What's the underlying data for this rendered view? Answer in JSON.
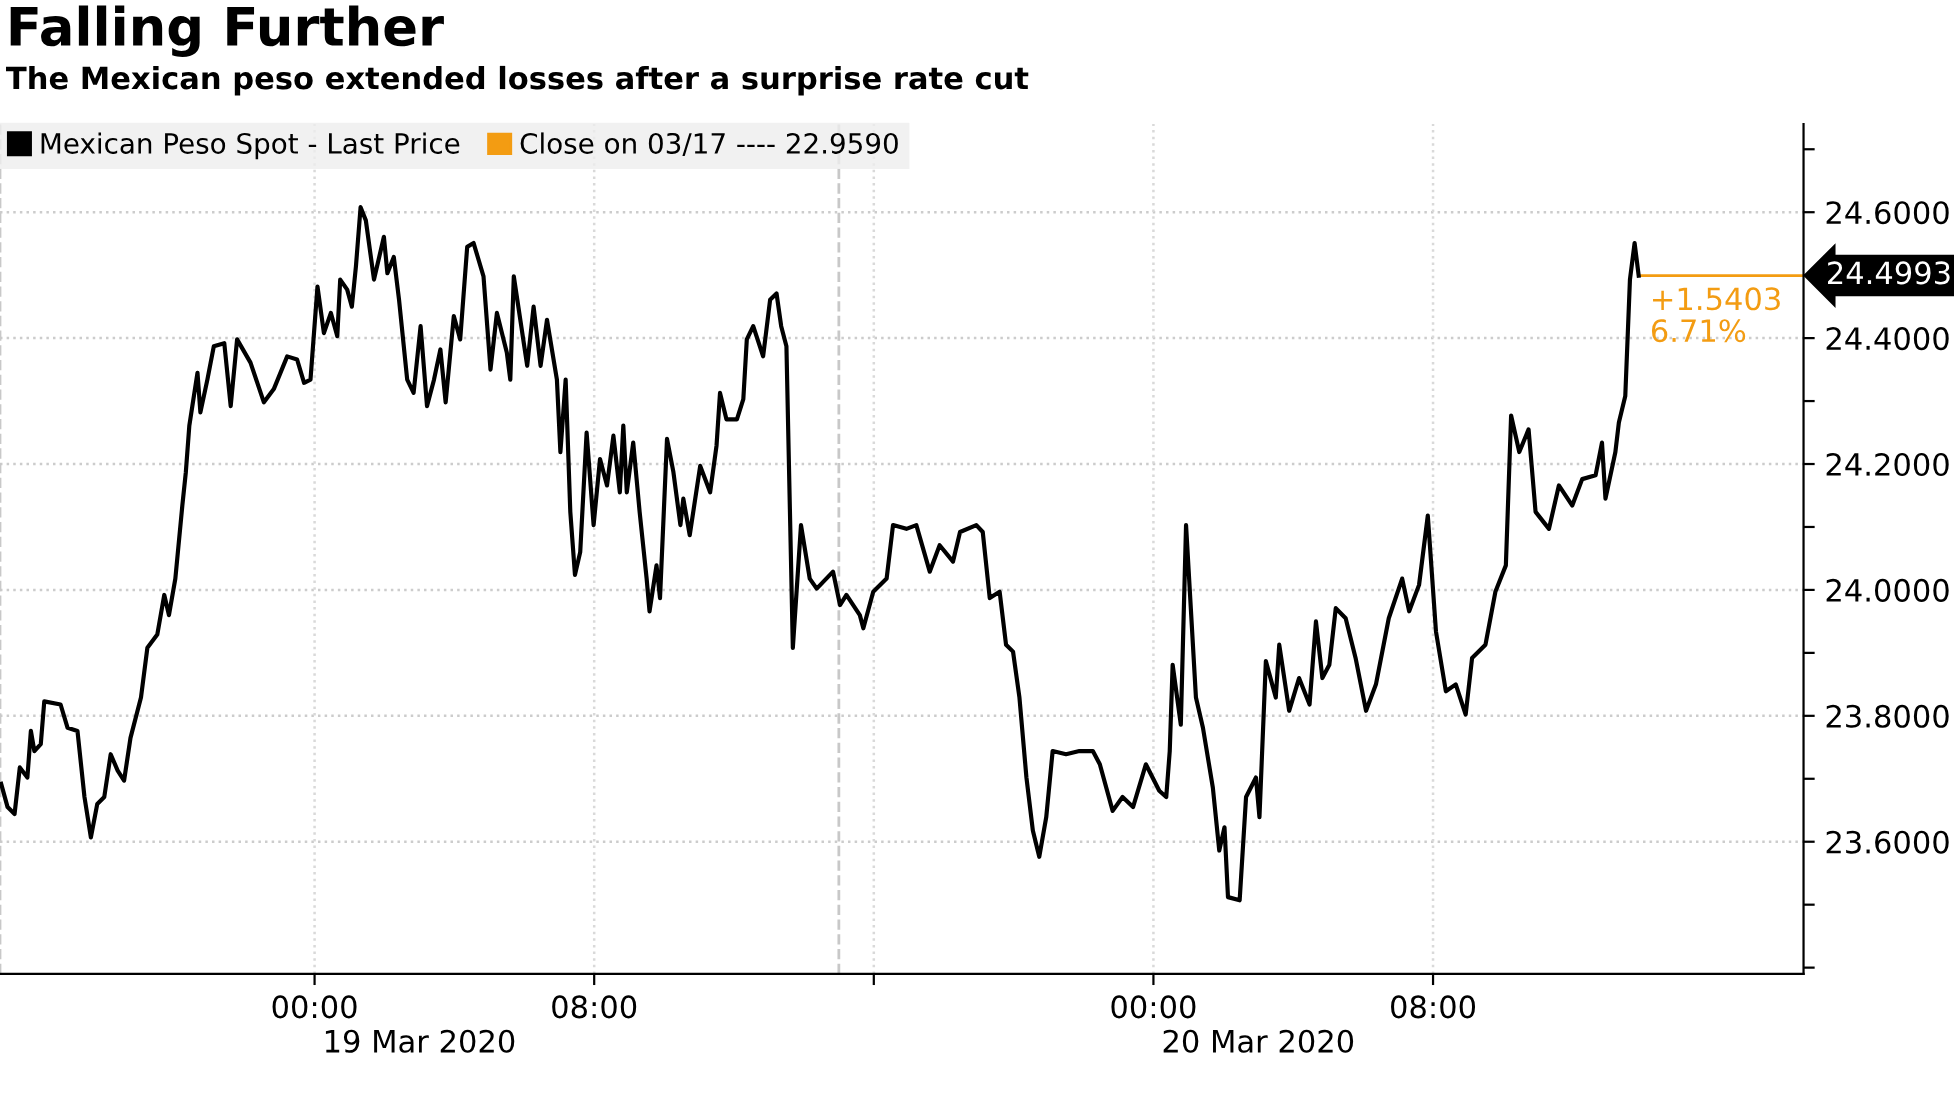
{
  "chart_data": {
    "type": "line",
    "title": "Falling Further",
    "subtitle": "The Mexican peso extended losses after a surprise rate cut",
    "series": [
      {
        "name": "Mexican Peso Spot - Last Price",
        "color": "#000000",
        "x": [
          "2020-03-18T15:02",
          "2020-03-18T15:13",
          "2020-03-18T15:25",
          "2020-03-18T15:34",
          "2020-03-18T15:47",
          "2020-03-18T15:53",
          "2020-03-18T15:59",
          "2020-03-18T16:10",
          "2020-03-18T16:16",
          "2020-03-18T16:44",
          "2020-03-18T16:56",
          "2020-03-18T17:13",
          "2020-03-18T17:25",
          "2020-03-18T17:36",
          "2020-03-18T17:47",
          "2020-03-18T17:59",
          "2020-03-18T18:10",
          "2020-03-18T18:22",
          "2020-03-18T18:33",
          "2020-03-18T18:44",
          "2020-03-18T19:02",
          "2020-03-18T19:13",
          "2020-03-18T19:30",
          "2020-03-18T19:42",
          "2020-03-18T19:50",
          "2020-03-18T20:01",
          "2020-03-18T20:13",
          "2020-03-18T20:19",
          "2020-03-18T20:25",
          "2020-03-18T20:39",
          "2020-03-18T20:44",
          "2020-03-18T20:56",
          "2020-03-18T21:07",
          "2020-03-18T21:25",
          "2020-03-18T21:36",
          "2020-03-18T21:47",
          "2020-03-18T22:10",
          "2020-03-18T22:33",
          "2020-03-18T22:50",
          "2020-03-18T23:13",
          "2020-03-18T23:30",
          "2020-03-18T23:42",
          "2020-03-18T23:53",
          "2020-03-19T00:05",
          "2020-03-19T00:16",
          "2020-03-19T00:28",
          "2020-03-19T00:39",
          "2020-03-19T00:44",
          "2020-03-19T00:56",
          "2020-03-19T01:04",
          "2020-03-19T01:11",
          "2020-03-19T01:19",
          "2020-03-19T01:28",
          "2020-03-19T01:42",
          "2020-03-19T01:59",
          "2020-03-19T02:05",
          "2020-03-19T02:16",
          "2020-03-19T02:25",
          "2020-03-19T02:39",
          "2020-03-19T02:50",
          "2020-03-19T03:02",
          "2020-03-19T03:13",
          "2020-03-19T03:25",
          "2020-03-19T03:36",
          "2020-03-19T03:45",
          "2020-03-19T03:59",
          "2020-03-19T04:10",
          "2020-03-19T04:22",
          "2020-03-19T04:33",
          "2020-03-19T04:50",
          "2020-03-19T05:02",
          "2020-03-19T05:13",
          "2020-03-19T05:30",
          "2020-03-19T05:36",
          "2020-03-19T05:42",
          "2020-03-19T06:05",
          "2020-03-19T06:16",
          "2020-03-19T06:28",
          "2020-03-19T06:39",
          "2020-03-19T06:56",
          "2020-03-19T07:02",
          "2020-03-19T07:11",
          "2020-03-19T07:19",
          "2020-03-19T07:27",
          "2020-03-19T07:36",
          "2020-03-19T07:47",
          "2020-03-19T07:59",
          "2020-03-19T08:10",
          "2020-03-19T08:22",
          "2020-03-19T08:33",
          "2020-03-19T08:44",
          "2020-03-19T08:50",
          "2020-03-19T08:56",
          "2020-03-19T09:07",
          "2020-03-19T09:18",
          "2020-03-19T09:30",
          "2020-03-19T09:35",
          "2020-03-19T09:47",
          "2020-03-19T09:53",
          "2020-03-19T10:05",
          "2020-03-19T10:16",
          "2020-03-19T10:28",
          "2020-03-19T10:33",
          "2020-03-19T10:44",
          "2020-03-19T11:02",
          "2020-03-19T11:19",
          "2020-03-19T11:30",
          "2020-03-19T11:36",
          "2020-03-19T11:47",
          "2020-03-19T12:05",
          "2020-03-19T12:16",
          "2020-03-19T12:22",
          "2020-03-19T12:33",
          "2020-03-19T12:50",
          "2020-03-19T13:02",
          "2020-03-19T13:13",
          "2020-03-19T13:21",
          "2020-03-19T13:30",
          "2020-03-19T13:41",
          "2020-03-19T13:55",
          "2020-03-19T14:10",
          "2020-03-19T14:22",
          "2020-03-19T14:50",
          "2020-03-19T15:02",
          "2020-03-19T15:13",
          "2020-03-19T15:36",
          "2020-03-19T15:42",
          "2020-03-19T15:59",
          "2020-03-19T16:22",
          "2020-03-19T16:33",
          "2020-03-19T16:56",
          "2020-03-19T17:13",
          "2020-03-19T17:36",
          "2020-03-19T17:53",
          "2020-03-19T18:16",
          "2020-03-19T18:28",
          "2020-03-19T18:56",
          "2020-03-19T19:07",
          "2020-03-19T19:19",
          "2020-03-19T19:36",
          "2020-03-19T19:47",
          "2020-03-19T19:59",
          "2020-03-19T20:10",
          "2020-03-19T20:22",
          "2020-03-19T20:33",
          "2020-03-19T20:44",
          "2020-03-19T20:56",
          "2020-03-19T21:07",
          "2020-03-19T21:30",
          "2020-03-19T21:53",
          "2020-03-19T22:16",
          "2020-03-19T22:28",
          "2020-03-19T22:50",
          "2020-03-19T23:07",
          "2020-03-19T23:25",
          "2020-03-19T23:47",
          "2020-03-20T00:10",
          "2020-03-20T00:22",
          "2020-03-20T00:28",
          "2020-03-20T00:33",
          "2020-03-20T00:47",
          "2020-03-20T00:56",
          "2020-03-20T01:13",
          "2020-03-20T01:25",
          "2020-03-20T01:42",
          "2020-03-20T01:53",
          "2020-03-20T02:02",
          "2020-03-20T02:08",
          "2020-03-20T02:28",
          "2020-03-20T02:39",
          "2020-03-20T02:56",
          "2020-03-20T03:02",
          "2020-03-20T03:13",
          "2020-03-20T03:30",
          "2020-03-20T03:36",
          "2020-03-20T03:53",
          "2020-03-20T04:10",
          "2020-03-20T04:28",
          "2020-03-20T04:39",
          "2020-03-20T04:50",
          "2020-03-20T05:02",
          "2020-03-20T05:13",
          "2020-03-20T05:30",
          "2020-03-20T05:47",
          "2020-03-20T06:05",
          "2020-03-20T06:22",
          "2020-03-20T06:44",
          "2020-03-20T07:07",
          "2020-03-20T07:19",
          "2020-03-20T07:36",
          "2020-03-20T07:51",
          "2020-03-20T08:05",
          "2020-03-20T08:22",
          "2020-03-20T08:39",
          "2020-03-20T08:56",
          "2020-03-20T09:07",
          "2020-03-20T09:30",
          "2020-03-20T09:47",
          "2020-03-20T10:05",
          "2020-03-20T10:14",
          "2020-03-20T10:28",
          "2020-03-20T10:44",
          "2020-03-20T10:56",
          "2020-03-20T11:19",
          "2020-03-20T11:36",
          "2020-03-20T11:59",
          "2020-03-20T12:16",
          "2020-03-20T12:39",
          "2020-03-20T12:50",
          "2020-03-20T12:56",
          "2020-03-20T13:13",
          "2020-03-20T13:19",
          "2020-03-20T13:30",
          "2020-03-20T13:38",
          "2020-03-20T13:46",
          "2020-03-20T13:53"
        ],
        "values": [
          23.692,
          23.655,
          23.644,
          23.718,
          23.702,
          23.776,
          23.744,
          23.755,
          23.823,
          23.818,
          23.781,
          23.776,
          23.671,
          23.607,
          23.66,
          23.671,
          23.739,
          23.713,
          23.697,
          23.765,
          23.829,
          23.908,
          23.929,
          23.992,
          23.96,
          24.018,
          24.134,
          24.187,
          24.261,
          24.345,
          24.282,
          24.334,
          24.387,
          24.392,
          24.292,
          24.398,
          24.361,
          24.298,
          24.319,
          24.371,
          24.366,
          24.329,
          24.334,
          24.482,
          24.408,
          24.44,
          24.403,
          24.493,
          24.477,
          24.45,
          24.514,
          24.608,
          24.587,
          24.493,
          24.561,
          24.503,
          24.529,
          24.461,
          24.334,
          24.313,
          24.419,
          24.292,
          24.334,
          24.382,
          24.298,
          24.435,
          24.398,
          24.545,
          24.551,
          24.498,
          24.35,
          24.44,
          24.377,
          24.334,
          24.498,
          24.356,
          24.45,
          24.356,
          24.429,
          24.334,
          24.219,
          24.334,
          24.124,
          24.024,
          24.06,
          24.25,
          24.103,
          24.208,
          24.166,
          24.245,
          24.155,
          24.261,
          24.155,
          24.234,
          24.124,
          24.018,
          23.966,
          24.039,
          23.987,
          24.24,
          24.187,
          24.103,
          24.145,
          24.087,
          24.197,
          24.155,
          24.229,
          24.313,
          24.271,
          24.271,
          24.303,
          24.398,
          24.419,
          24.371,
          24.461,
          24.471,
          24.419,
          24.387,
          23.908,
          24.103,
          24.018,
          24.002,
          24.029,
          23.976,
          23.992,
          23.96,
          23.939,
          23.997,
          24.018,
          24.103,
          24.097,
          24.103,
          24.029,
          24.071,
          24.045,
          24.092,
          24.103,
          24.092,
          23.987,
          23.997,
          23.913,
          23.902,
          23.829,
          23.702,
          23.618,
          23.576,
          23.639,
          23.744,
          23.739,
          23.744,
          23.744,
          23.723,
          23.649,
          23.671,
          23.655,
          23.723,
          23.681,
          23.671,
          23.744,
          23.881,
          23.786,
          24.103,
          23.829,
          23.781,
          23.686,
          23.586,
          23.623,
          23.512,
          23.507,
          23.671,
          23.702,
          23.639,
          23.887,
          23.829,
          23.913,
          23.808,
          23.86,
          23.818,
          23.95,
          23.86,
          23.881,
          23.971,
          23.955,
          23.892,
          23.808,
          23.85,
          23.955,
          24.018,
          23.966,
          24.008,
          24.118,
          23.934,
          23.839,
          23.85,
          23.802,
          23.892,
          23.913,
          23.997,
          24.039,
          24.277,
          24.219,
          24.255,
          24.124,
          24.097,
          24.166,
          24.134,
          24.176,
          24.182,
          24.234,
          24.145,
          24.219,
          24.266,
          24.308,
          24.493,
          24.551,
          24.4993
        ]
      }
    ],
    "xlim": [
      "2020-03-18T15:00",
      "2020-03-20T18:36"
    ],
    "xticks": [
      {
        "value": "2020-03-19T00:00",
        "label": "00:00"
      },
      {
        "value": "2020-03-19T08:00",
        "label": "08:00"
      },
      {
        "value": "2020-03-19T16:00",
        "label": null
      },
      {
        "value": "2020-03-20T00:00",
        "label": "00:00"
      },
      {
        "value": "2020-03-20T08:00",
        "label": "08:00"
      }
    ],
    "ylim": [
      23.39,
      24.74
    ],
    "yticks": [
      {
        "value": 23.4,
        "label": null
      },
      {
        "value": 23.5,
        "label": null
      },
      {
        "value": 23.6,
        "label": "23.6000"
      },
      {
        "value": 23.7,
        "label": null
      },
      {
        "value": 23.8,
        "label": "23.8000"
      },
      {
        "value": 23.9,
        "label": null
      },
      {
        "value": 24.0,
        "label": "24.0000"
      },
      {
        "value": 24.1,
        "label": null
      },
      {
        "value": 24.2,
        "label": "24.2000"
      },
      {
        "value": 24.3,
        "label": null
      },
      {
        "value": 24.4,
        "label": "24.4000"
      },
      {
        "value": 24.5,
        "label": null
      },
      {
        "value": 24.6,
        "label": "24.6000"
      },
      {
        "value": 24.7,
        "label": null
      }
    ],
    "ref_lines": [
      {
        "axis": "x",
        "value": "2020-03-18T15:00",
        "label": null,
        "color": "#c8c8c8",
        "line_style": "dashed"
      },
      {
        "axis": "x",
        "value": "2020-03-19T15:00",
        "label": null,
        "color": "#c8c8c8",
        "line_style": "dashed"
      },
      {
        "axis": "y",
        "value": 24.4993,
        "label": "Close on 03/17 ---- 22.9590",
        "color": "#f39c12",
        "line_style": "solid"
      }
    ],
    "annotations": [
      {
        "text": "+1.5403\n6.71%",
        "x": "2020-03-20T13:53",
        "y": 24.4993
      },
      {
        "text": "24.4993",
        "x": "2020-03-20T18:36",
        "y": 24.4993
      },
      "19 Mar 2020",
      "20 Mar 2020"
    ],
    "grid": true,
    "legend": "top left",
    "marker": "none",
    "line_style": "solid"
  }
}
